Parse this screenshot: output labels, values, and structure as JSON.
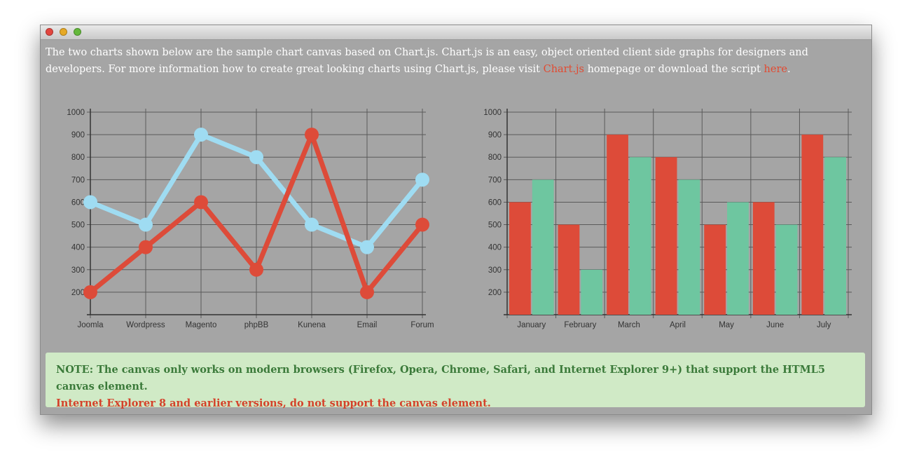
{
  "intro": {
    "text_before_link": "The two charts shown below are the sample chart canvas based on Chart.js. Chart.js is an easy, object oriented client side graphs for designers and developers. For more information how to create great looking charts using Chart.js, please visit ",
    "chartjs_link": "Chart.js",
    "text_between": " homepage or download the script ",
    "here_link": "here",
    "text_end": "."
  },
  "note": {
    "line1": "NOTE: The canvas only works on modern browsers (Firefox, Opera, Chrome, Safari, and Internet Explorer 9+) that support the HTML5 canvas element.",
    "line2": "Internet Explorer 8 and earlier versions, do not support the canvas element."
  },
  "colors": {
    "red": "#dd4b39",
    "blue": "#9fdcf2",
    "green": "#6ec6a0",
    "link": "#e24a31"
  },
  "chart_data": [
    {
      "type": "line",
      "categories": [
        "Joomla",
        "Wordpress",
        "Magento",
        "phpBB",
        "Kunena",
        "Email",
        "Forum"
      ],
      "series": [
        {
          "color": "#9fdcf2",
          "values": [
            600,
            500,
            900,
            800,
            500,
            400,
            700
          ]
        },
        {
          "color": "#dd4b39",
          "values": [
            200,
            400,
            600,
            300,
            900,
            200,
            500
          ]
        }
      ],
      "yticks": [
        200,
        300,
        400,
        500,
        600,
        700,
        800,
        900,
        1000
      ],
      "ylim": [
        100,
        1000
      ],
      "grid": true
    },
    {
      "type": "bar",
      "categories": [
        "January",
        "February",
        "March",
        "April",
        "May",
        "June",
        "July"
      ],
      "series": [
        {
          "color": "#dd4b39",
          "values": [
            600,
            500,
            900,
            800,
            500,
            600,
            900
          ]
        },
        {
          "color": "#6ec6a0",
          "values": [
            700,
            300,
            800,
            700,
            600,
            500,
            800
          ]
        }
      ],
      "yticks": [
        200,
        300,
        400,
        500,
        600,
        700,
        800,
        900,
        1000
      ],
      "ylim": [
        100,
        1000
      ],
      "grid": true
    }
  ]
}
